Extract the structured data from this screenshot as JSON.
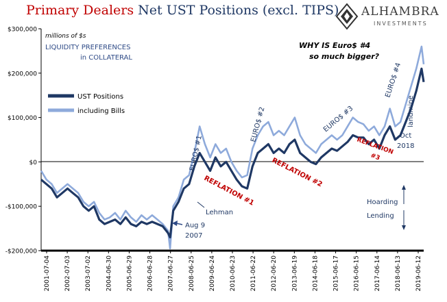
{
  "header": {
    "title_part1": "Primary Dealers",
    "title_part2": "Net UST Positions (excl. TIPS)"
  },
  "logo": {
    "name": "ALHAMBRA",
    "subtitle": "INVESTMENTS",
    "icon": "alhambra-logo-icon"
  },
  "chart_data": {
    "type": "line",
    "title": "Primary Dealers Net UST Positions (excl. TIPS)",
    "units_label": "millions of $s",
    "ylim": [
      -200000,
      300000
    ],
    "y_ticks": [
      {
        "v": 300000,
        "label": "$300,000"
      },
      {
        "v": 200000,
        "label": "$200,000"
      },
      {
        "v": 100000,
        "label": "$100,000"
      },
      {
        "v": 0,
        "label": "$0"
      },
      {
        "v": -100000,
        "label": "-$100,000"
      },
      {
        "v": -200000,
        "label": "-$200,000"
      }
    ],
    "x_ticks": [
      "2001-07-04",
      "2002-07-03",
      "2003-07-02",
      "2004-06-30",
      "2005-06-29",
      "2006-06-28",
      "2007-06-27",
      "2008-06-25",
      "2009-06-24",
      "2010-06-23",
      "2011-06-22",
      "2012-06-20",
      "2013-06-19",
      "2014-06-18",
      "2015-06-17",
      "2016-06-15",
      "2017-06-14",
      "2018-06-13",
      "2019-06-12"
    ],
    "xlim": [
      2001.5,
      2019.6
    ],
    "grid": false,
    "legend_title": "LIQUIDITY PREFERENCES in COLLATERAL",
    "legend_title_lines": [
      "LIQUIDITY PREFERENCES",
      "in COLLATERAL"
    ],
    "legend_placement": "top-left",
    "series": [
      {
        "name": "UST Positions",
        "color": "#1f3864",
        "x": [
          2001.5,
          2001.75,
          2002.0,
          2002.25,
          2002.5,
          2002.75,
          2003.0,
          2003.25,
          2003.5,
          2003.75,
          2004.0,
          2004.25,
          2004.5,
          2004.75,
          2005.0,
          2005.25,
          2005.5,
          2005.75,
          2006.0,
          2006.25,
          2006.5,
          2006.75,
          2007.0,
          2007.25,
          2007.5,
          2007.6,
          2007.75,
          2008.0,
          2008.25,
          2008.5,
          2008.75,
          2009.0,
          2009.25,
          2009.5,
          2009.75,
          2010.0,
          2010.25,
          2010.5,
          2010.75,
          2011.0,
          2011.25,
          2011.5,
          2011.75,
          2012.0,
          2012.25,
          2012.5,
          2012.75,
          2013.0,
          2013.25,
          2013.5,
          2013.75,
          2014.0,
          2014.25,
          2014.5,
          2014.75,
          2015.0,
          2015.25,
          2015.5,
          2015.75,
          2016.0,
          2016.25,
          2016.5,
          2016.75,
          2017.0,
          2017.25,
          2017.5,
          2017.75,
          2018.0,
          2018.25,
          2018.5,
          2018.75,
          2019.0,
          2019.25,
          2019.5,
          2019.6
        ],
        "values": [
          -40000,
          -50000,
          -60000,
          -80000,
          -70000,
          -60000,
          -70000,
          -80000,
          -100000,
          -110000,
          -100000,
          -130000,
          -140000,
          -135000,
          -130000,
          -140000,
          -125000,
          -140000,
          -145000,
          -135000,
          -140000,
          -135000,
          -140000,
          -145000,
          -160000,
          -170000,
          -110000,
          -90000,
          -60000,
          -50000,
          -10000,
          20000,
          0,
          -20000,
          10000,
          -10000,
          0,
          -20000,
          -40000,
          -55000,
          -60000,
          -10000,
          20000,
          30000,
          40000,
          20000,
          30000,
          20000,
          40000,
          50000,
          20000,
          10000,
          0,
          -5000,
          10000,
          20000,
          30000,
          25000,
          35000,
          45000,
          60000,
          55000,
          55000,
          40000,
          50000,
          30000,
          60000,
          80000,
          50000,
          60000,
          90000,
          120000,
          160000,
          210000,
          180000
        ]
      },
      {
        "name": "including Bills",
        "color": "#8eaadb",
        "x": [
          2001.5,
          2001.75,
          2002.0,
          2002.25,
          2002.5,
          2002.75,
          2003.0,
          2003.25,
          2003.5,
          2003.75,
          2004.0,
          2004.25,
          2004.5,
          2004.75,
          2005.0,
          2005.25,
          2005.5,
          2005.75,
          2006.0,
          2006.25,
          2006.5,
          2006.75,
          2007.0,
          2007.25,
          2007.5,
          2007.6,
          2007.75,
          2008.0,
          2008.25,
          2008.5,
          2008.75,
          2009.0,
          2009.25,
          2009.5,
          2009.75,
          2010.0,
          2010.25,
          2010.5,
          2010.75,
          2011.0,
          2011.25,
          2011.5,
          2011.75,
          2012.0,
          2012.25,
          2012.5,
          2012.75,
          2013.0,
          2013.25,
          2013.5,
          2013.75,
          2014.0,
          2014.25,
          2014.5,
          2014.75,
          2015.0,
          2015.25,
          2015.5,
          2015.75,
          2016.0,
          2016.25,
          2016.5,
          2016.75,
          2017.0,
          2017.25,
          2017.5,
          2017.75,
          2018.0,
          2018.25,
          2018.5,
          2018.75,
          2019.0,
          2019.25,
          2019.5,
          2019.6
        ],
        "values": [
          -20000,
          -40000,
          -50000,
          -70000,
          -60000,
          -50000,
          -60000,
          -70000,
          -90000,
          -100000,
          -90000,
          -115000,
          -130000,
          -125000,
          -115000,
          -130000,
          -110000,
          -125000,
          -135000,
          -120000,
          -130000,
          -120000,
          -130000,
          -140000,
          -155000,
          -195000,
          -100000,
          -80000,
          -40000,
          -30000,
          20000,
          80000,
          40000,
          10000,
          40000,
          20000,
          30000,
          0,
          -20000,
          -35000,
          -30000,
          30000,
          60000,
          80000,
          90000,
          60000,
          70000,
          60000,
          80000,
          100000,
          60000,
          40000,
          30000,
          20000,
          40000,
          50000,
          60000,
          50000,
          60000,
          80000,
          100000,
          90000,
          85000,
          70000,
          80000,
          60000,
          80000,
          120000,
          80000,
          90000,
          130000,
          170000,
          210000,
          260000,
          220000
        ]
      }
    ],
    "annotations": {
      "question_line1": "WHY IS Euro$ #4",
      "question_line2": "so much bigger?",
      "euro1": "EURO$ #1",
      "euro2": "EURO$ #2",
      "euro3": "EURO$ #3",
      "euro4": "EURO$ #4",
      "landmine": "landmine",
      "reflation1": "REFLATION #1",
      "reflation2": "REFLATION #2",
      "reflation3_line1": "REFLATION",
      "reflation3_line2": "#3",
      "lehman": "Lehman",
      "aug9_line1": "Aug 9",
      "aug9_line2": "2007",
      "oct_line1": "Oct",
      "oct_line2": "2018",
      "hoarding": "Hoarding",
      "lending": "Lending"
    },
    "annotation_colors": {
      "red": "#c00000",
      "blue": "#1f3864",
      "label_blue": "#2e4a86"
    }
  }
}
